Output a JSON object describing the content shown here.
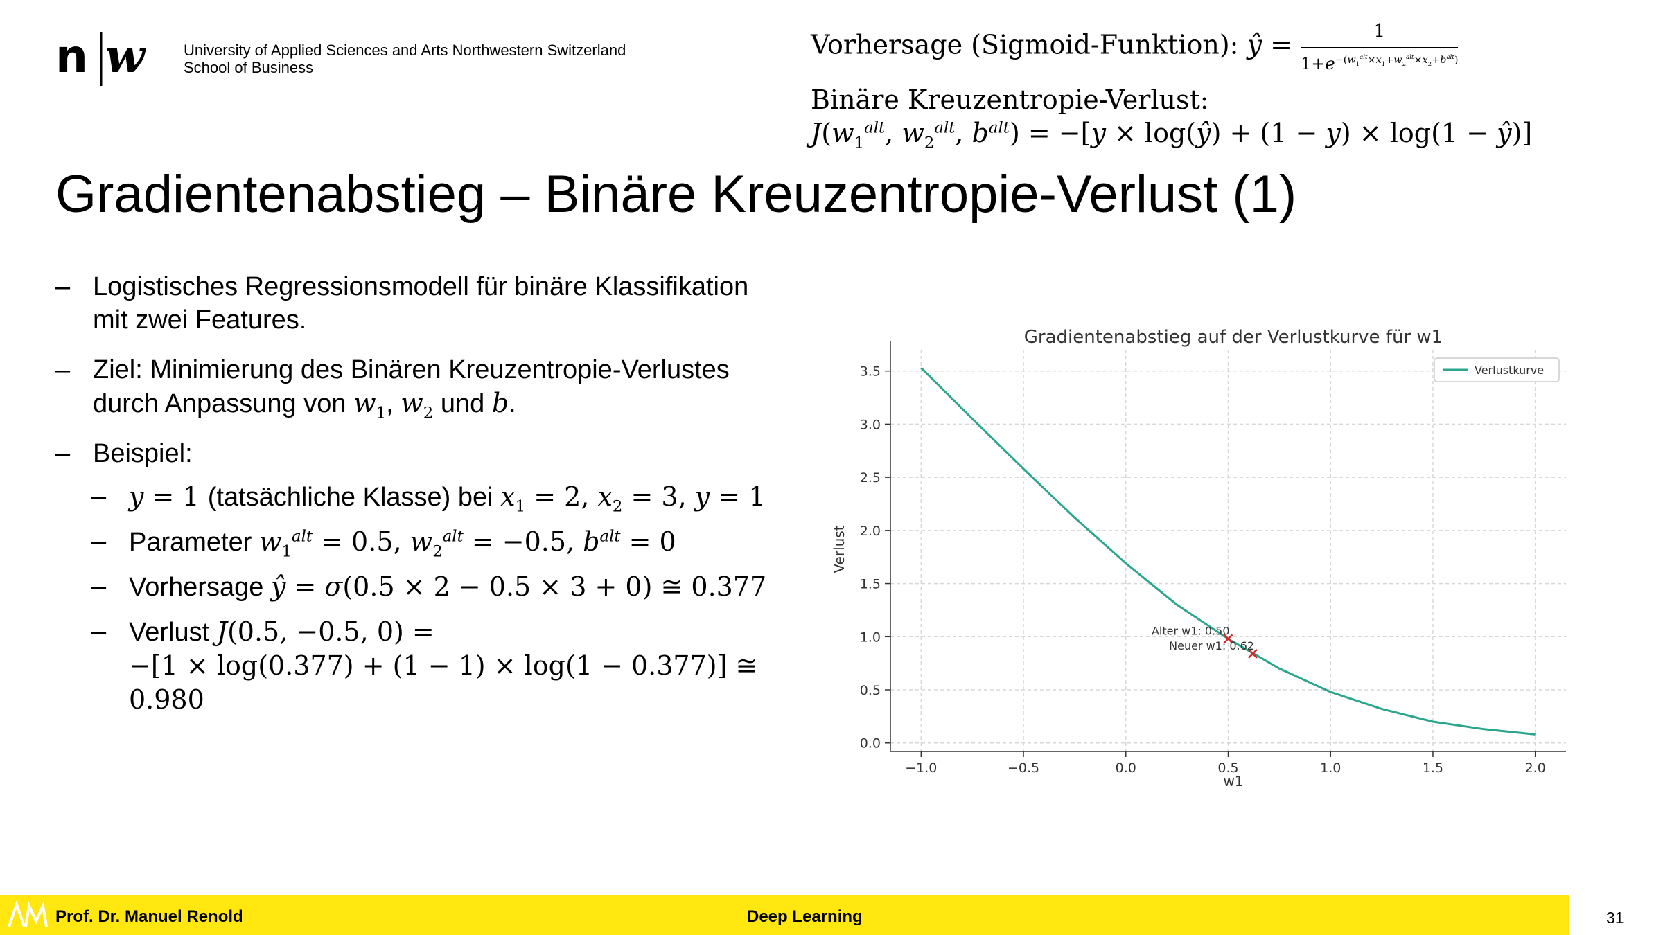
{
  "header": {
    "university_line1": "University of Applied Sciences and Arts Northwestern Switzerland",
    "university_line2": "School of Business"
  },
  "formulas": {
    "prediction_label": "Vorhersage (Sigmoid-Funktion):",
    "prediction_numerator": "1",
    "loss_label": "Binäre Kreuzentropie-Verlust:"
  },
  "title": "Gradientenabstieg – Binäre Kreuzentropie-Verlust (1)",
  "bullets": {
    "b1_line1": "Logistisches Regressionsmodell für binäre Klassifikation",
    "b1_line2": "mit zwei Features.",
    "b2_line1": "Ziel: Minimierung des Binären Kreuzentropie-Verlustes",
    "b2_prefix": "durch Anpassung von",
    "b2_and": "und",
    "b3": "Beispiel:",
    "sub1_text": "(tatsächliche Klasse) bei",
    "sub2_text": "Parameter",
    "sub3_text": "Vorhersage",
    "sub4_text": "Verlust"
  },
  "chart_data": {
    "type": "line",
    "title": "Gradientenabstieg auf der Verlustkurve für w1",
    "xlabel": "w1",
    "ylabel": "Verlust",
    "xlim": [
      -1.15,
      2.15
    ],
    "ylim": [
      -0.08,
      3.7
    ],
    "xticks": [
      -1.0,
      -0.5,
      0.0,
      0.5,
      1.0,
      1.5,
      2.0
    ],
    "xtick_labels": [
      "−1.0",
      "−0.5",
      "0.0",
      "0.5",
      "1.0",
      "1.5",
      "2.0"
    ],
    "yticks": [
      0.0,
      0.5,
      1.0,
      1.5,
      2.0,
      2.5,
      3.0,
      3.5
    ],
    "ytick_labels": [
      "0.0",
      "0.5",
      "1.0",
      "1.5",
      "2.0",
      "2.5",
      "3.0",
      "3.5"
    ],
    "grid": true,
    "legend": "top-right",
    "series": [
      {
        "name": "Verlustkurve",
        "color": "#2ca58d",
        "x": [
          -1.0,
          -0.75,
          -0.5,
          -0.25,
          0.0,
          0.25,
          0.5,
          0.75,
          1.0,
          1.25,
          1.5,
          1.75,
          2.0
        ],
        "y": [
          3.53,
          3.05,
          2.58,
          2.12,
          1.69,
          1.3,
          0.98,
          0.7,
          0.48,
          0.32,
          0.2,
          0.13,
          0.08
        ]
      }
    ],
    "annotations": [
      {
        "text": "Alter w1: 0.50",
        "x": 0.5,
        "y": 0.98,
        "color": "#d62728"
      },
      {
        "text": "Neuer w1: 0.62",
        "x": 0.62,
        "y": 0.84,
        "color": "#d62728"
      }
    ]
  },
  "footer": {
    "author": "Prof. Dr. Manuel Renold",
    "course": "Deep Learning",
    "page": "31"
  }
}
